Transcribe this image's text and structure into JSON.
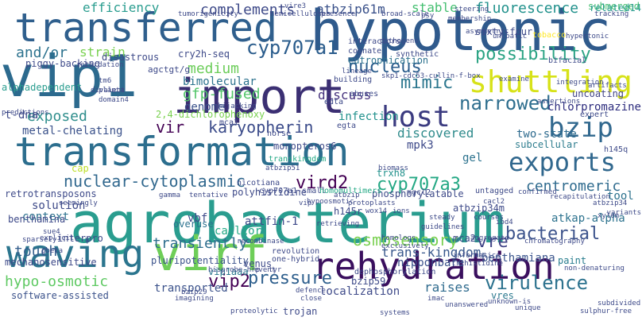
{
  "palette": [
    "#440154",
    "#482475",
    "#414487",
    "#355f8d",
    "#2a788e",
    "#21918c",
    "#22a884",
    "#44bf70",
    "#7ad151",
    "#bddf26",
    "#fde725"
  ],
  "words": [
    {
      "text": "agrobacterium",
      "color": "#2a9d8f"
    },
    {
      "text": "transformation",
      "color": "#2c6e8e"
    },
    {
      "text": "vip1",
      "color": "#2c6a8e"
    },
    {
      "text": "import",
      "color": "#3b2f73"
    },
    {
      "text": "hypotonic",
      "color": "#2f5a8c"
    },
    {
      "text": "transferred",
      "color": "#2f5f8d"
    },
    {
      "text": "virf",
      "color": "#6ece58"
    },
    {
      "text": "rehydration",
      "color": "#3a0f5e"
    },
    {
      "text": "waving",
      "color": "#2b758e"
    },
    {
      "text": "shuttling",
      "color": "#d7e219"
    },
    {
      "text": "host",
      "color": "#3b3b80"
    },
    {
      "text": "exports",
      "color": "#31688e"
    },
    {
      "text": "bzip",
      "color": "#31688e"
    },
    {
      "text": "nuclear-cytoplasmic",
      "color": "#31688e"
    },
    {
      "text": "vird2",
      "color": "#440154"
    },
    {
      "text": "cyp707a3",
      "color": "#24a884"
    },
    {
      "text": "centromeric",
      "color": "#2f6b8e"
    },
    {
      "text": "subcellular",
      "color": "#2e7d8e"
    },
    {
      "text": "karyopherin",
      "color": "#3b4b8a"
    },
    {
      "text": "cyp707a1",
      "color": "#2a5c8c"
    },
    {
      "text": "nucleus",
      "color": "#2a5c8c"
    },
    {
      "text": "mimic",
      "color": "#2b768e"
    },
    {
      "text": "medium",
      "color": "#6ccd5a"
    },
    {
      "text": "gfp-fused",
      "color": "#52c569"
    },
    {
      "text": "narrowed",
      "color": "#2e6e8e"
    },
    {
      "text": "possibility",
      "color": "#2ba384"
    },
    {
      "text": "fluorescence",
      "color": "#21918c"
    },
    {
      "text": "stable",
      "color": "#44bf70"
    },
    {
      "text": "atbzip61m",
      "color": "#3b528b"
    },
    {
      "text": "complements",
      "color": "#3e4a89"
    },
    {
      "text": "efficiency",
      "color": "#2a9d8f"
    },
    {
      "text": "strain",
      "color": "#7ad151"
    },
    {
      "text": "and/or",
      "color": "#2c728e"
    },
    {
      "text": "exposed",
      "color": "#2f8e8c"
    },
    {
      "text": "vir",
      "color": "#440154"
    },
    {
      "text": "pressure",
      "color": "#2e5f8d"
    },
    {
      "text": "virulence",
      "color": "#2c728e"
    },
    {
      "text": "vip2",
      "color": "#440154"
    },
    {
      "text": "osmosensory",
      "color": "#7ad151"
    },
    {
      "text": "bacterial",
      "color": "#3b528b"
    },
    {
      "text": "vre",
      "color": "#414487"
    },
    {
      "text": "touch",
      "color": "#355f8d"
    },
    {
      "text": "transiently",
      "color": "#2e6e8e"
    },
    {
      "text": "hypo-osmotic",
      "color": "#5ec962"
    },
    {
      "text": "software-assisted",
      "color": "#3b528b"
    },
    {
      "text": "transported",
      "color": "#3b528b"
    },
    {
      "text": "localization",
      "color": "#3e4a89"
    },
    {
      "text": "raises",
      "color": "#2f6b8e"
    },
    {
      "text": "vres",
      "color": "#2a788e"
    },
    {
      "text": "trans-kingdom",
      "color": "#38588c"
    },
    {
      "text": "nipponbare",
      "color": "#3b528b"
    },
    {
      "text": "benthamiana",
      "color": "#3a548c"
    },
    {
      "text": "paint",
      "color": "#287d8e"
    },
    {
      "text": "atkap-alpha",
      "color": "#2c728e"
    },
    {
      "text": "chlorpromazine",
      "color": "#2e2d7e"
    },
    {
      "text": "uncoating",
      "color": "#414487"
    },
    {
      "text": "two-state",
      "color": "#2e6b8e"
    },
    {
      "text": "discovered",
      "color": "#2f8b8c"
    },
    {
      "text": "bimolecular",
      "color": "#2c728e"
    },
    {
      "text": "genome",
      "color": "#3b528b"
    },
    {
      "text": "discuss",
      "color": "#46327e"
    },
    {
      "text": "eutrophication",
      "color": "#2c728e"
    },
    {
      "text": "solution",
      "color": "#3e4a89"
    },
    {
      "text": "context",
      "color": "#2c728e"
    },
    {
      "text": "metal-chelating",
      "color": "#3b528b"
    },
    {
      "text": "t-dna",
      "color": "#3e4a89"
    },
    {
      "text": "cry2h-seq",
      "color": "#3e4a89"
    },
    {
      "text": "disastrous",
      "color": "#3e4a89"
    },
    {
      "text": "piggy-backing",
      "color": "#3e4a89"
    },
    {
      "text": "infection",
      "color": "#21918c"
    },
    {
      "text": "vbf",
      "color": "#3e4a89"
    },
    {
      "text": "mechanosensitive",
      "color": "#3e4a89"
    },
    {
      "text": "pluripotentiality",
      "color": "#3b528b"
    },
    {
      "text": "attfin-1",
      "color": "#3e4a89"
    },
    {
      "text": "cacl2or",
      "color": "#22a884"
    },
    {
      "text": "benthamina",
      "color": "#3e4a89"
    },
    {
      "text": "retrotransposons",
      "color": "#3e4a89"
    },
    {
      "text": "interpro",
      "color": "#3e4a89"
    },
    {
      "text": "vip1aaa",
      "color": "#2a788e"
    },
    {
      "text": "bzip59",
      "color": "#3e4a89"
    },
    {
      "text": "trojan",
      "color": "#3e4a89"
    },
    {
      "text": "mpk3",
      "color": "#3e4a89"
    },
    {
      "text": "tool",
      "color": "#2c728e"
    },
    {
      "text": "gel",
      "color": "#2c728e"
    },
    {
      "text": "submerged",
      "color": "#44bf70"
    },
    {
      "text": "sixty-four",
      "color": "#3e4a89"
    },
    {
      "text": "tobacco",
      "color": "#fde725"
    },
    {
      "text": "related14",
      "color": "#2a9d8f"
    },
    {
      "text": "monopteros6",
      "color": "#3e4a89"
    },
    {
      "text": "2,4-dichlorophenoxy",
      "color": "#7ad151"
    },
    {
      "text": "polyhistidine",
      "color": "#3e4a89"
    },
    {
      "text": "nicotiana",
      "color": "#3e4a89"
    },
    {
      "text": "phosphorylatable",
      "color": "#3e4a89"
    },
    {
      "text": "cyp707a1-small",
      "color": "#3e4a89"
    },
    {
      "text": "atbzip34m",
      "color": "#3e4a89"
    },
    {
      "text": "h145r",
      "color": "#3e4a89"
    },
    {
      "text": "mca2",
      "color": "#3e4a89"
    },
    {
      "text": "dephosphorylation",
      "color": "#3e4a89"
    },
    {
      "text": "one-hybrid",
      "color": "#3e4a89"
    },
    {
      "text": "revolution",
      "color": "#3e4a89"
    },
    {
      "text": "venus",
      "color": "#3e4a89"
    },
    {
      "text": "overuse",
      "color": "#2c728e"
    },
    {
      "text": "untagged",
      "color": "#3e4a89"
    },
    {
      "text": "cap",
      "color": "#bddf26"
    },
    {
      "text": "horse",
      "color": "#3e4a89"
    },
    {
      "text": "egta",
      "color": "#3e4a89"
    },
    {
      "text": "edta",
      "color": "#3e4a89"
    },
    {
      "text": "mca1",
      "color": "#3e4a89"
    },
    {
      "text": "trxh8",
      "color": "#21918c"
    },
    {
      "text": "mgcl2",
      "color": "#3e4a89"
    },
    {
      "text": "homomultimers",
      "color": "#22a884"
    },
    {
      "text": "transkingdom",
      "color": "#22a884"
    },
    {
      "text": "h145q",
      "color": "#3e4a89"
    },
    {
      "text": "interactors",
      "color": "#3e4a89"
    },
    {
      "text": "cognate",
      "color": "#3e4a89"
    },
    {
      "text": "synthetic",
      "color": "#3e4a89"
    },
    {
      "text": "building",
      "color": "#3e4a89"
    },
    {
      "text": "abuses",
      "color": "#3e4a89"
    },
    {
      "text": "expert",
      "color": "#3e4a89"
    },
    {
      "text": "bifacial",
      "color": "#3e4a89"
    },
    {
      "text": "alphadependent",
      "color": "#2a9d8f"
    },
    {
      "text": "agctgt/g",
      "color": "#3e4a89"
    },
    {
      "text": "vire3",
      "color": "#3e4a89"
    },
    {
      "text": "hemicelluloses",
      "color": "#3e4a89"
    },
    {
      "text": "presence",
      "color": "#3e4a89"
    },
    {
      "text": "broad-scale",
      "color": "#3e4a89"
    },
    {
      "text": "psy",
      "color": "#3e4a89"
    },
    {
      "text": "steering",
      "color": "#3e4a89"
    },
    {
      "text": "hypertonic",
      "color": "#3e4a89"
    },
    {
      "text": "integration",
      "color": "#3e4a89"
    },
    {
      "text": "artifacts",
      "color": "#3e4a89"
    },
    {
      "text": "tracking",
      "color": "#3e4a89"
    },
    {
      "text": "pathogens",
      "color": "#3e4a89"
    },
    {
      "text": "asymmetric",
      "color": "#3e4a89"
    },
    {
      "text": "tumorigenicity",
      "color": "#3e4a89"
    },
    {
      "text": "skp1-cdc53-cullin-f-box",
      "color": "#3e4a89"
    },
    {
      "text": "lineage",
      "color": "#3e4a89"
    },
    {
      "text": "membership",
      "color": "#3e4a89"
    },
    {
      "text": "uncoatic",
      "color": "#3e4a89"
    },
    {
      "text": "examine",
      "color": "#3e4a89"
    },
    {
      "text": "assertions",
      "color": "#3e4a89"
    },
    {
      "text": "retardation",
      "color": "#3e4a89"
    },
    {
      "text": "tm6",
      "color": "#3e4a89"
    },
    {
      "text": "planta",
      "color": "#3e4a89"
    },
    {
      "text": "divalent",
      "color": "#3e4a89"
    },
    {
      "text": "domain4",
      "color": "#3e4a89"
    },
    {
      "text": "predictions",
      "color": "#3e4a89"
    },
    {
      "text": "hijacking",
      "color": "#3e4a89"
    },
    {
      "text": "atbzip51",
      "color": "#3e4a89"
    },
    {
      "text": "biomass",
      "color": "#3e4a89"
    },
    {
      "text": "atbzip",
      "color": "#3e4a89"
    },
    {
      "text": "protoplasts",
      "color": "#3e4a89"
    },
    {
      "text": "hypoosmotic",
      "color": "#3e4a89"
    },
    {
      "text": "recapitulation",
      "color": "#3e4a89"
    },
    {
      "text": "atbzip34",
      "color": "#3e4a89"
    },
    {
      "text": "confirmed",
      "color": "#3e4a89"
    },
    {
      "text": "vip",
      "color": "#3e4a89"
    },
    {
      "text": "steady",
      "color": "#3e4a89"
    },
    {
      "text": "ibd4",
      "color": "#3e4a89"
    },
    {
      "text": "xylem",
      "color": "#3e4a89"
    },
    {
      "text": "chromatography",
      "color": "#3e4a89"
    },
    {
      "text": "variants",
      "color": "#3e4a89"
    },
    {
      "text": "gamma",
      "color": "#3e4a89"
    },
    {
      "text": "tentative",
      "color": "#3e4a89"
    },
    {
      "text": "seemingly",
      "color": "#3e4a89"
    },
    {
      "text": "retrieving",
      "color": "#3e4a89"
    },
    {
      "text": "wox14",
      "color": "#3e4a89"
    },
    {
      "text": "guidelines",
      "color": "#3e4a89"
    },
    {
      "text": "cacl2",
      "color": "#3e4a89"
    },
    {
      "text": "recombinase",
      "color": "#3e4a89"
    },
    {
      "text": "homologs",
      "color": "#3e4a89"
    },
    {
      "text": "exclusively",
      "color": "#3e4a89"
    },
    {
      "text": "courses",
      "color": "#3e4a89"
    },
    {
      "text": "informatics",
      "color": "#3e4a89"
    },
    {
      "text": "explicit",
      "color": "#3e4a89"
    },
    {
      "text": "sparsely",
      "color": "#3e4a89"
    },
    {
      "text": "sue4",
      "color": "#3e4a89"
    },
    {
      "text": "gbeta",
      "color": "#3e4a89"
    },
    {
      "text": "trihistidine",
      "color": "#3e4a89"
    },
    {
      "text": "hisprobe-hrp",
      "color": "#3e4a89"
    },
    {
      "text": "event",
      "color": "#3e4a89"
    },
    {
      "text": "tyr",
      "color": "#3e4a89"
    },
    {
      "text": "bzip29",
      "color": "#3e4a89"
    },
    {
      "text": "imagining",
      "color": "#3e4a89"
    },
    {
      "text": "defence",
      "color": "#3e4a89"
    },
    {
      "text": "close",
      "color": "#3e4a89"
    },
    {
      "text": "imac",
      "color": "#3e4a89"
    },
    {
      "text": "unanswered",
      "color": "#3e4a89"
    },
    {
      "text": "unknown-is",
      "color": "#3e4a89"
    },
    {
      "text": "sulphur-free",
      "color": "#3e4a89"
    },
    {
      "text": "proteolytic",
      "color": "#3e4a89"
    },
    {
      "text": "systems",
      "color": "#3e4a89"
    },
    {
      "text": "subdivided",
      "color": "#3e4a89"
    },
    {
      "text": "unique",
      "color": "#3e4a89"
    },
    {
      "text": "non-denaturing",
      "color": "#3e4a89"
    },
    {
      "text": "aggregate",
      "color": "#3e4a89"
    },
    {
      "text": "ions",
      "color": "#3e4a89"
    }
  ]
}
